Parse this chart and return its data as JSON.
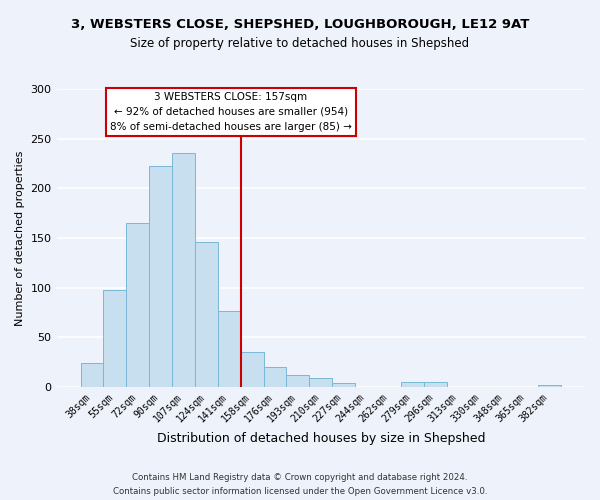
{
  "title_line1": "3, WEBSTERS CLOSE, SHEPSHED, LOUGHBOROUGH, LE12 9AT",
  "title_line2": "Size of property relative to detached houses in Shepshed",
  "xlabel": "Distribution of detached houses by size in Shepshed",
  "ylabel": "Number of detached properties",
  "bar_labels": [
    "38sqm",
    "55sqm",
    "72sqm",
    "90sqm",
    "107sqm",
    "124sqm",
    "141sqm",
    "158sqm",
    "176sqm",
    "193sqm",
    "210sqm",
    "227sqm",
    "244sqm",
    "262sqm",
    "279sqm",
    "296sqm",
    "313sqm",
    "330sqm",
    "348sqm",
    "365sqm",
    "382sqm"
  ],
  "bar_values": [
    24,
    98,
    165,
    222,
    236,
    146,
    76,
    35,
    20,
    12,
    9,
    4,
    0,
    0,
    5,
    5,
    0,
    0,
    0,
    0,
    2
  ],
  "bar_color": "#c8dff0",
  "bar_edge_color": "#7ab8d8",
  "vline_color": "#cc0000",
  "annotation_title": "3 WEBSTERS CLOSE: 157sqm",
  "annotation_line2": "← 92% of detached houses are smaller (954)",
  "annotation_line3": "8% of semi-detached houses are larger (85) →",
  "annotation_box_color": "#ffffff",
  "annotation_box_edge": "#cc0000",
  "ylim": [
    0,
    300
  ],
  "yticks": [
    0,
    50,
    100,
    150,
    200,
    250,
    300
  ],
  "footer_line1": "Contains HM Land Registry data © Crown copyright and database right 2024.",
  "footer_line2": "Contains public sector information licensed under the Open Government Licence v3.0.",
  "background_color": "#eef2fb",
  "grid_color": "#ffffff"
}
